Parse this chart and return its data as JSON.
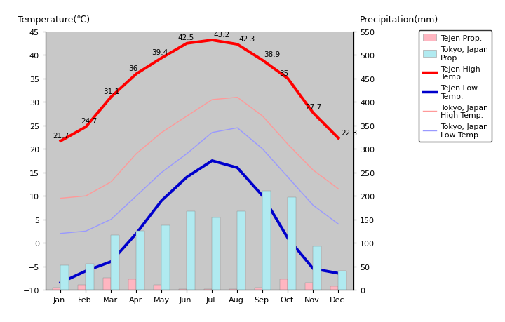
{
  "months": [
    "Jan.",
    "Feb.",
    "Mar.",
    "Apr.",
    "May",
    "Jun.",
    "Jul.",
    "Aug.",
    "Sep.",
    "Oct.",
    "Nov.",
    "Dec."
  ],
  "tejen_high": [
    21.7,
    24.7,
    31.1,
    36.0,
    39.4,
    42.5,
    43.2,
    42.3,
    38.9,
    35.0,
    27.7,
    22.3
  ],
  "tejen_low": [
    -8.5,
    -6.0,
    -4.0,
    2.0,
    9.0,
    14.0,
    17.5,
    16.0,
    10.0,
    1.0,
    -5.5,
    -6.5
  ],
  "tokyo_high": [
    9.5,
    10.0,
    13.0,
    19.0,
    23.5,
    27.0,
    30.5,
    31.0,
    27.0,
    21.0,
    15.5,
    11.5
  ],
  "tokyo_low": [
    2.0,
    2.5,
    5.0,
    10.0,
    15.0,
    19.0,
    23.5,
    24.5,
    20.0,
    14.0,
    8.0,
    4.0
  ],
  "tejen_precip_mm": [
    5,
    10,
    25,
    22,
    10,
    2,
    2,
    2,
    5,
    22,
    15,
    8
  ],
  "tokyo_precip_mm": [
    52,
    56,
    117,
    125,
    138,
    168,
    154,
    168,
    210,
    198,
    93,
    40
  ],
  "tejen_high_labels": [
    "21.7",
    "24.7",
    "31.1",
    "36",
    "39.4",
    "42.5",
    "43.2",
    "42.3",
    "38.9",
    "35",
    "27.7",
    "22.3"
  ],
  "title_left": "Temperature(℃)",
  "title_right": "Precipitation(mm)",
  "ylim_left": [
    -10,
    45
  ],
  "ylim_right": [
    0,
    550
  ],
  "bg_color": "#c8c8c8",
  "tejen_high_color": "#ff0000",
  "tejen_low_color": "#0000cc",
  "tokyo_high_color": "#ff9999",
  "tokyo_low_color": "#9999ff",
  "tejen_precip_color": "#ffb6c1",
  "tokyo_precip_color": "#b0eaf0",
  "yticks_left": [
    -10,
    -5,
    0,
    5,
    10,
    15,
    20,
    25,
    30,
    35,
    40,
    45
  ],
  "yticks_right": [
    0,
    50,
    100,
    150,
    200,
    250,
    300,
    350,
    400,
    450,
    500,
    550
  ],
  "label_offsets_x": [
    -0.3,
    -0.2,
    -0.3,
    -0.3,
    -0.4,
    -0.35,
    0.05,
    0.05,
    0.05,
    -0.35,
    -0.3,
    0.1
  ],
  "label_offsets_y": [
    0.8,
    0.8,
    0.8,
    0.8,
    0.8,
    0.8,
    0.8,
    0.8,
    0.8,
    0.8,
    0.8,
    0.8
  ]
}
